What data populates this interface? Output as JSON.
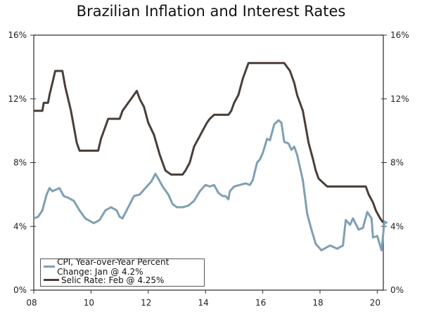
{
  "chart_data": {
    "type": "line",
    "title": "Brazilian Inflation and Interest Rates",
    "ylim": [
      0,
      16
    ],
    "xlim": [
      2008,
      2020.2
    ],
    "y_ticks": [
      "0%",
      "4%",
      "8%",
      "12%",
      "16%"
    ],
    "y_tick_values": [
      0,
      4,
      8,
      12,
      16
    ],
    "x_ticks": [
      "08",
      "10",
      "12",
      "14",
      "16",
      "18",
      "20"
    ],
    "x_tick_values": [
      2008,
      2010,
      2012,
      2014,
      2016,
      2018,
      2020
    ],
    "legend_position": "bottom-left",
    "series": [
      {
        "name": "CPI, Year-over-Year Percent Change: Jan @ 4.2%",
        "color": "#7f9fb3",
        "points": [
          [
            2008,
            4.5
          ],
          [
            2008.15,
            4.6
          ],
          [
            2008.3,
            5.0
          ],
          [
            2008.45,
            6.0
          ],
          [
            2008.55,
            6.4
          ],
          [
            2008.65,
            6.2
          ],
          [
            2008.9,
            6.4
          ],
          [
            2009.05,
            5.9
          ],
          [
            2009.2,
            5.8
          ],
          [
            2009.4,
            5.6
          ],
          [
            2009.6,
            5.0
          ],
          [
            2009.8,
            4.5
          ],
          [
            2010,
            4.3
          ],
          [
            2010.1,
            4.2
          ],
          [
            2010.3,
            4.4
          ],
          [
            2010.5,
            5.0
          ],
          [
            2010.7,
            5.2
          ],
          [
            2010.9,
            5.0
          ],
          [
            2011,
            4.6
          ],
          [
            2011.1,
            4.5
          ],
          [
            2011.3,
            5.2
          ],
          [
            2011.5,
            5.9
          ],
          [
            2011.7,
            6.0
          ],
          [
            2011.9,
            6.4
          ],
          [
            2012.1,
            6.8
          ],
          [
            2012.25,
            7.3
          ],
          [
            2012.35,
            7.0
          ],
          [
            2012.5,
            6.5
          ],
          [
            2012.7,
            6.0
          ],
          [
            2012.85,
            5.4
          ],
          [
            2013,
            5.2
          ],
          [
            2013.2,
            5.2
          ],
          [
            2013.4,
            5.3
          ],
          [
            2013.6,
            5.6
          ],
          [
            2013.8,
            6.2
          ],
          [
            2014,
            6.6
          ],
          [
            2014.15,
            6.5
          ],
          [
            2014.3,
            6.6
          ],
          [
            2014.45,
            6.1
          ],
          [
            2014.6,
            5.9
          ],
          [
            2014.7,
            5.9
          ],
          [
            2014.8,
            5.7
          ],
          [
            2014.85,
            6.2
          ],
          [
            2015,
            6.5
          ],
          [
            2015.2,
            6.6
          ],
          [
            2015.4,
            6.7
          ],
          [
            2015.55,
            6.6
          ],
          [
            2015.65,
            6.9
          ],
          [
            2015.8,
            8.0
          ],
          [
            2015.9,
            8.2
          ],
          [
            2016.0,
            8.6
          ],
          [
            2016.15,
            9.5
          ],
          [
            2016.25,
            9.4
          ],
          [
            2016.4,
            10.4
          ],
          [
            2016.55,
            10.66
          ],
          [
            2016.65,
            10.5
          ],
          [
            2016.75,
            9.3
          ],
          [
            2016.9,
            9.2
          ],
          [
            2017.0,
            8.8
          ],
          [
            2017.1,
            9.0
          ],
          [
            2017.2,
            8.5
          ],
          [
            2017.4,
            6.9
          ],
          [
            2017.55,
            4.8
          ],
          [
            2017.7,
            3.8
          ],
          [
            2017.85,
            2.9
          ],
          [
            2018.05,
            2.5
          ],
          [
            2018.35,
            2.8
          ],
          [
            2018.6,
            2.6
          ],
          [
            2018.8,
            2.8
          ],
          [
            2018.9,
            4.4
          ],
          [
            2019.05,
            4.1
          ],
          [
            2019.15,
            4.5
          ],
          [
            2019.35,
            3.8
          ],
          [
            2019.5,
            3.9
          ],
          [
            2019.65,
            4.9
          ],
          [
            2019.8,
            4.5
          ],
          [
            2019.85,
            3.3
          ],
          [
            2020.0,
            3.4
          ],
          [
            2020.15,
            2.5
          ],
          [
            2020.25,
            4.3
          ],
          [
            2020.35,
            4.2
          ]
        ]
      },
      {
        "name": "Selic Rate: Feb @ 4.25%",
        "color": "#4a3f38",
        "points": [
          [
            2008,
            11.25
          ],
          [
            2008.3,
            11.25
          ],
          [
            2008.35,
            11.75
          ],
          [
            2008.5,
            11.75
          ],
          [
            2008.55,
            12.25
          ],
          [
            2008.65,
            13.0
          ],
          [
            2008.75,
            13.75
          ],
          [
            2009.0,
            13.75
          ],
          [
            2009.1,
            12.75
          ],
          [
            2009.3,
            11.25
          ],
          [
            2009.4,
            10.25
          ],
          [
            2009.5,
            9.25
          ],
          [
            2009.6,
            8.75
          ],
          [
            2010.25,
            8.75
          ],
          [
            2010.35,
            9.5
          ],
          [
            2010.5,
            10.25
          ],
          [
            2010.6,
            10.75
          ],
          [
            2011.0,
            10.75
          ],
          [
            2011.1,
            11.25
          ],
          [
            2011.3,
            11.75
          ],
          [
            2011.4,
            12.0
          ],
          [
            2011.6,
            12.5
          ],
          [
            2011.7,
            12.0
          ],
          [
            2011.85,
            11.5
          ],
          [
            2012.0,
            10.5
          ],
          [
            2012.2,
            9.75
          ],
          [
            2012.4,
            8.5
          ],
          [
            2012.6,
            7.5
          ],
          [
            2012.8,
            7.25
          ],
          [
            2013.2,
            7.25
          ],
          [
            2013.3,
            7.5
          ],
          [
            2013.45,
            8.0
          ],
          [
            2013.6,
            9.0
          ],
          [
            2013.75,
            9.5
          ],
          [
            2013.9,
            10.0
          ],
          [
            2014.05,
            10.5
          ],
          [
            2014.15,
            10.75
          ],
          [
            2014.3,
            11.0
          ],
          [
            2014.8,
            11.0
          ],
          [
            2014.9,
            11.25
          ],
          [
            2015.0,
            11.75
          ],
          [
            2015.15,
            12.25
          ],
          [
            2015.3,
            13.25
          ],
          [
            2015.4,
            13.75
          ],
          [
            2015.5,
            14.25
          ],
          [
            2016.75,
            14.25
          ],
          [
            2016.85,
            14.0
          ],
          [
            2016.95,
            13.75
          ],
          [
            2017.1,
            13.0
          ],
          [
            2017.2,
            12.25
          ],
          [
            2017.4,
            11.25
          ],
          [
            2017.5,
            10.25
          ],
          [
            2017.6,
            9.25
          ],
          [
            2017.75,
            8.25
          ],
          [
            2017.85,
            7.5
          ],
          [
            2017.95,
            7.0
          ],
          [
            2018.1,
            6.75
          ],
          [
            2018.25,
            6.5
          ],
          [
            2019.6,
            6.5
          ],
          [
            2019.7,
            6.0
          ],
          [
            2019.85,
            5.5
          ],
          [
            2019.95,
            5.0
          ],
          [
            2020.1,
            4.5
          ],
          [
            2020.2,
            4.25
          ]
        ]
      }
    ]
  }
}
